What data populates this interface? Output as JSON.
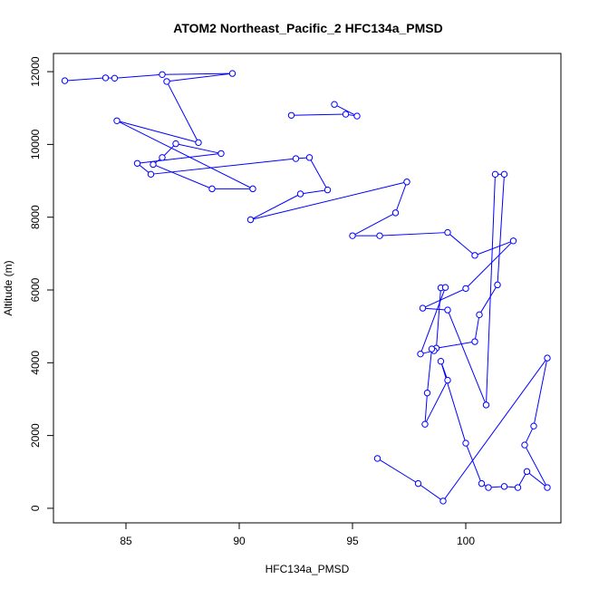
{
  "chart_data": {
    "type": "line",
    "title": "ATOM2 Northeast_Pacific_2 HFC134a_PMSD",
    "xlabel": "HFC134a_PMSD",
    "ylabel": "Altitude (m)",
    "xlim": [
      81.8,
      104.2
    ],
    "ylim": [
      -400,
      12500
    ],
    "xticks": [
      85,
      90,
      95,
      100
    ],
    "yticks": [
      0,
      2000,
      4000,
      6000,
      8000,
      10000,
      12000
    ],
    "line_color": "#0000ff",
    "marker": "open-circle",
    "grid": false,
    "series": [
      {
        "x": [
          82.3,
          84.1,
          84.5,
          86.6,
          89.7,
          86.8,
          88.2,
          84.6,
          90.6,
          88.8,
          86.2,
          86.6,
          87.2,
          89.2,
          85.5,
          86.1,
          92.5,
          93.1,
          93.9,
          92.7,
          90.5,
          97.4,
          96.9,
          95.0,
          96.2,
          99.2,
          100.4,
          102.1,
          100.0,
          98.1,
          99.2,
          100.9,
          101.3,
          101.7,
          101.4,
          100.6,
          100.4,
          98.7,
          98.9,
          99.1,
          98.0,
          98.6,
          98.5,
          98.3,
          98.2,
          99.2,
          98.9,
          100.0,
          100.7,
          101.0,
          101.7,
          102.3,
          102.7,
          103.6,
          102.6,
          103.0,
          103.6,
          99.0,
          97.9,
          96.1
        ],
        "y": [
          11750,
          11830,
          11820,
          11920,
          11950,
          11730,
          10050,
          10650,
          8780,
          8780,
          9450,
          9640,
          10020,
          9750,
          9480,
          9180,
          9610,
          9640,
          8750,
          8640,
          7930,
          8970,
          8120,
          7490,
          7490,
          7580,
          6950,
          7350,
          6040,
          5500,
          5450,
          2840,
          9180,
          9180,
          6140,
          5320,
          4580,
          4400,
          6060,
          6070,
          4240,
          4330,
          4380,
          3170,
          2310,
          3520,
          4040,
          1790,
          680,
          570,
          600,
          570,
          1010,
          570,
          1740,
          2260,
          4130,
          200,
          680,
          1370
        ]
      },
      {
        "x": [
          92.3,
          94.7,
          95.2,
          94.2
        ],
        "y": [
          10800,
          10830,
          10780,
          11100
        ]
      }
    ]
  }
}
